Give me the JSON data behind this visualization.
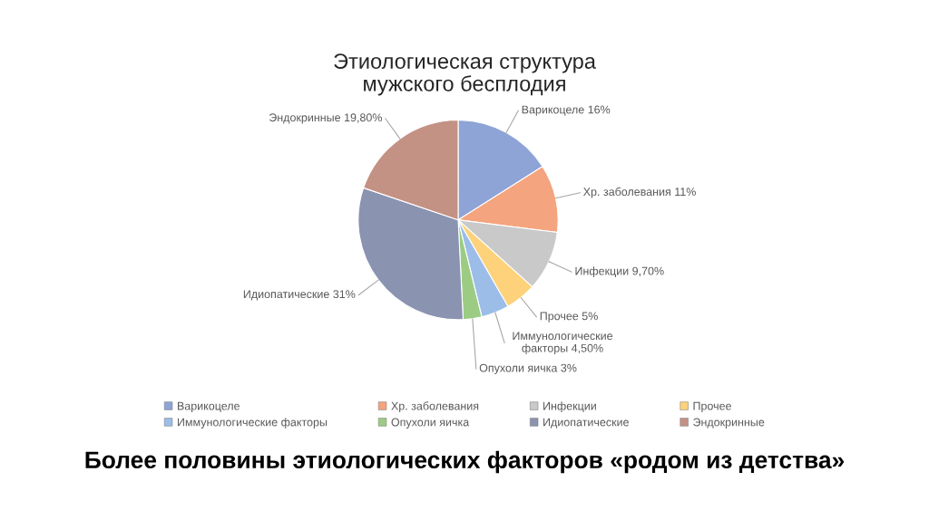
{
  "chart_data": {
    "type": "pie",
    "title": "Этиологическая структура\nмужского бесплодия",
    "categories": [
      "Варикоцеле",
      "Хр. заболевания",
      "Инфекции",
      "Прочее",
      "Иммунологические факторы",
      "Опухоли яичка",
      "Идиопатические",
      "Эндокринные"
    ],
    "values": [
      16,
      11,
      9.7,
      5,
      4.5,
      3,
      31,
      19.8
    ],
    "value_labels": [
      "16%",
      "11%",
      "9,70%",
      "5%",
      "4,50%",
      "3%",
      "31%",
      "19,80%"
    ],
    "colors": [
      "#8ea3d6",
      "#f4a47e",
      "#c9c9c9",
      "#fdd27a",
      "#9dbde9",
      "#9ccc84",
      "#8a93b0",
      "#c49185"
    ],
    "legend": "bottom",
    "annotations": [
      "Более половины этиологических факторов «родом из детства»"
    ]
  }
}
